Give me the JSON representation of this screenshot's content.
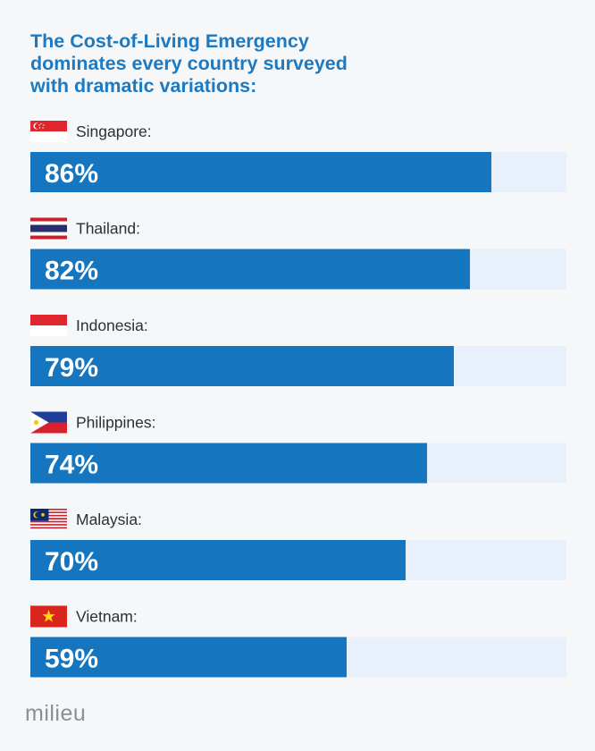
{
  "header": {
    "title_lines": [
      "The Cost-of-Living Emergency",
      "dominates every country surveyed",
      "with dramatic variations:"
    ]
  },
  "chart_data": {
    "type": "bar",
    "orientation": "horizontal",
    "categories": [
      "Singapore:",
      "Thailand:",
      "Indonesia:",
      "Philippines:",
      "Malaysia:",
      "Vietnam:"
    ],
    "values": [
      86,
      82,
      79,
      74,
      70,
      59
    ],
    "value_labels": [
      "86%",
      "82%",
      "79%",
      "74%",
      "70%",
      "59%"
    ],
    "flags": [
      "singapore-flag",
      "thailand-flag",
      "indonesia-flag",
      "philippines-flag",
      "malaysia-flag",
      "vietnam-flag"
    ],
    "xlim": [
      0,
      100
    ],
    "colors": {
      "bar": "#1575be",
      "track": "#e8f1fb",
      "label": "#2b2f36",
      "value_text": "#ffffff"
    },
    "grid": false
  },
  "footer": {
    "logo_text": "milieu"
  },
  "colors": {
    "title": "#1d79c0",
    "background": "#f6f7f9",
    "logo": "#8a8f96"
  }
}
